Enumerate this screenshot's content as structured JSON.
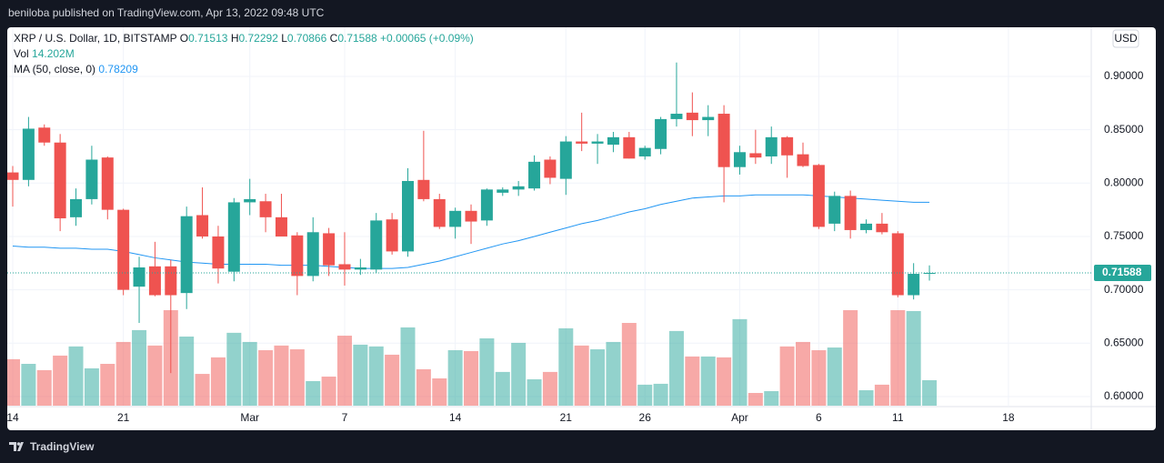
{
  "header": {
    "text": "beniloba published on TradingView.com, Apr 13, 2022 09:48 UTC"
  },
  "footer": {
    "brand": "TradingView"
  },
  "chart_data": {
    "type": "candlestick",
    "symbol": "XRP / U.S. Dollar, 1D, BITSTAMP",
    "ohlc_letters": [
      "O",
      "H",
      "L",
      "C"
    ],
    "change": "+0.00065 (+0.09%)",
    "currency": "USD",
    "colors": {
      "up": "#26a69a",
      "down": "#ef5350"
    },
    "categories": [
      "14",
      null,
      null,
      null,
      null,
      null,
      null,
      "21",
      null,
      null,
      null,
      null,
      null,
      null,
      null,
      "Mar",
      null,
      null,
      null,
      null,
      null,
      "7",
      null,
      null,
      null,
      null,
      null,
      null,
      "14",
      null,
      null,
      null,
      null,
      null,
      null,
      "21",
      null,
      null,
      null,
      null,
      "26",
      null,
      null,
      null,
      null,
      null,
      "Apr",
      null,
      null,
      null,
      null,
      "6",
      null,
      null,
      null,
      null,
      "11",
      null,
      null,
      null,
      null,
      null,
      null,
      "18"
    ],
    "open": [
      0.81,
      0.803,
      0.852,
      0.838,
      0.768,
      0.785,
      0.824,
      0.775,
      0.703,
      0.722,
      0.722,
      0.697,
      0.77,
      0.75,
      0.717,
      0.782,
      0.783,
      0.768,
      0.751,
      0.713,
      0.753,
      0.724,
      0.719,
      0.719,
      0.766,
      0.736,
      0.803,
      0.785,
      0.759,
      0.774,
      0.765,
      0.791,
      0.794,
      0.795,
      0.822,
      0.804,
      0.839,
      0.837,
      0.836,
      0.843,
      0.825,
      0.832,
      0.86,
      0.866,
      0.859,
      0.865,
      0.815,
      0.828,
      0.825,
      0.843,
      0.827,
      0.817,
      0.762,
      0.788,
      0.756,
      0.762,
      0.753,
      0.695,
      0.71513,
      null,
      null,
      null,
      null,
      null
    ],
    "high": [
      0.816,
      0.862,
      0.855,
      0.846,
      0.795,
      0.835,
      0.825,
      0.776,
      0.731,
      0.745,
      0.728,
      0.778,
      0.796,
      0.76,
      0.786,
      0.804,
      0.79,
      0.79,
      0.754,
      0.768,
      0.758,
      0.754,
      0.729,
      0.772,
      0.772,
      0.814,
      0.849,
      0.79,
      0.777,
      0.78,
      0.795,
      0.796,
      0.802,
      0.826,
      0.825,
      0.844,
      0.866,
      0.846,
      0.848,
      0.848,
      0.835,
      0.862,
      0.913,
      0.885,
      0.873,
      0.873,
      0.835,
      0.85,
      0.853,
      0.844,
      0.838,
      0.818,
      0.792,
      0.793,
      0.766,
      0.772,
      0.755,
      0.725,
      0.72292,
      null,
      null,
      null,
      null,
      null
    ],
    "low": [
      0.778,
      0.797,
      0.835,
      0.755,
      0.76,
      0.78,
      0.766,
      0.695,
      0.669,
      0.694,
      0.622,
      0.682,
      0.748,
      0.706,
      0.708,
      0.77,
      0.754,
      0.752,
      0.695,
      0.708,
      0.713,
      0.704,
      0.714,
      0.716,
      0.733,
      0.731,
      0.783,
      0.757,
      0.748,
      0.743,
      0.76,
      0.788,
      0.788,
      0.793,
      0.799,
      0.789,
      0.83,
      0.818,
      0.829,
      0.823,
      0.822,
      0.827,
      0.853,
      0.844,
      0.844,
      0.782,
      0.808,
      0.818,
      0.818,
      0.805,
      0.815,
      0.757,
      0.755,
      0.748,
      0.753,
      0.752,
      0.693,
      0.691,
      0.70866,
      null,
      null,
      null,
      null,
      null
    ],
    "close": [
      0.803,
      0.851,
      0.838,
      0.767,
      0.785,
      0.822,
      0.775,
      0.7,
      0.721,
      0.695,
      0.695,
      0.769,
      0.75,
      0.72,
      0.782,
      0.785,
      0.768,
      0.75,
      0.713,
      0.754,
      0.723,
      0.719,
      0.721,
      0.765,
      0.736,
      0.802,
      0.785,
      0.759,
      0.774,
      0.764,
      0.794,
      0.794,
      0.797,
      0.82,
      0.805,
      0.839,
      0.837,
      0.839,
      0.843,
      0.823,
      0.833,
      0.86,
      0.865,
      0.859,
      0.862,
      0.815,
      0.829,
      0.824,
      0.843,
      0.826,
      0.816,
      0.759,
      0.788,
      0.756,
      0.762,
      0.754,
      0.695,
      0.715,
      0.71588,
      null,
      null,
      null,
      null,
      null
    ],
    "volume": {
      "name": "Vol",
      "values": [
        25.9,
        23.3,
        19.8,
        27.9,
        33.0,
        20.8,
        23.3,
        35.5,
        42.1,
        33.5,
        53.2,
        38.5,
        17.7,
        26.9,
        40.6,
        35.5,
        30.9,
        33.5,
        31.4,
        13.7,
        16.2,
        39.0,
        34.0,
        33.0,
        28.4,
        43.6,
        20.3,
        15.2,
        30.9,
        30.4,
        37.5,
        18.8,
        35.0,
        14.7,
        18.8,
        43.1,
        33.5,
        31.4,
        35.5,
        46.1,
        11.7,
        12.2,
        41.6,
        27.4,
        27.4,
        26.9,
        48.2,
        7.1,
        8.1,
        33.0,
        35.5,
        30.9,
        32.4,
        53.2,
        8.6,
        11.7,
        53.2,
        52.7,
        14.202,
        null,
        null,
        null,
        null,
        null
      ],
      "value_labels": [
        null,
        null,
        null,
        null,
        null,
        null,
        null,
        null,
        null,
        null,
        null,
        null,
        null,
        null,
        null,
        null,
        null,
        null,
        null,
        null,
        null,
        null,
        null,
        null,
        null,
        null,
        null,
        null,
        null,
        null,
        null,
        null,
        null,
        null,
        null,
        null,
        null,
        null,
        null,
        null,
        null,
        null,
        null,
        null,
        null,
        null,
        null,
        null,
        null,
        null,
        null,
        null,
        null,
        null,
        null,
        null,
        null,
        null,
        "14.202M",
        null,
        null,
        null,
        null,
        null
      ]
    },
    "ma": {
      "name": "MA (50, close, 0)",
      "color": "#2196f3",
      "values": [
        0.741,
        0.74,
        0.74,
        0.739,
        0.739,
        0.738,
        0.738,
        0.736,
        0.733,
        0.73,
        0.728,
        0.726,
        0.725,
        0.724,
        0.724,
        0.724,
        0.724,
        0.723,
        0.723,
        0.723,
        0.722,
        0.721,
        0.72,
        0.72,
        0.72,
        0.721,
        0.724,
        0.727,
        0.731,
        0.735,
        0.739,
        0.743,
        0.746,
        0.75,
        0.754,
        0.758,
        0.762,
        0.765,
        0.769,
        0.773,
        0.776,
        0.78,
        0.783,
        0.786,
        0.787,
        0.788,
        0.788,
        0.789,
        0.789,
        0.789,
        0.789,
        0.788,
        0.787,
        0.786,
        0.785,
        0.784,
        0.783,
        0.782,
        0.78209,
        null,
        null,
        null,
        null,
        null
      ]
    },
    "ylim": [
      0.5906,
      0.946
    ],
    "yticks": [
      {
        "value": 0.6,
        "label": "0.60000"
      },
      {
        "value": 0.65,
        "label": "0.65000"
      },
      {
        "value": 0.7,
        "label": "0.70000"
      },
      {
        "value": 0.75,
        "label": "0.75000"
      },
      {
        "value": 0.8,
        "label": "0.80000"
      },
      {
        "value": 0.85,
        "label": "0.85000"
      },
      {
        "value": 0.9,
        "label": "0.90000"
      }
    ],
    "grid": true
  }
}
